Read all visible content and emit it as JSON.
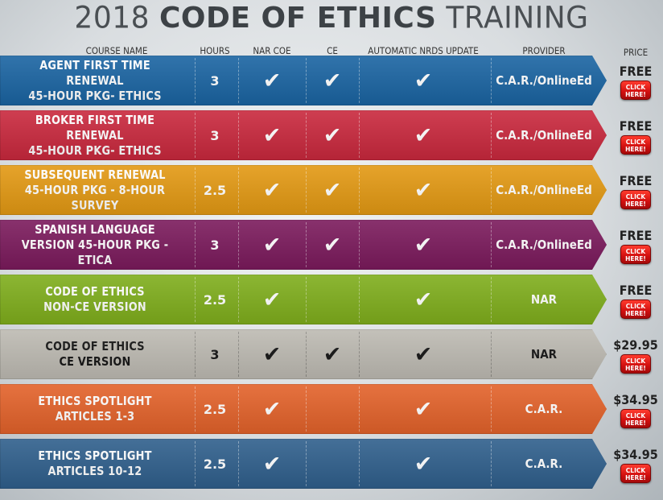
{
  "title": {
    "light1": "2018",
    "bold": "CODE OF ETHICS",
    "light2": "TRAINING"
  },
  "headers": {
    "course_name": "COURSE NAME",
    "hours": "HOURS",
    "nar_coe": "NAR COE",
    "ce": "CE",
    "nrds": "AUTOMATIC NRDS UPDATE",
    "provider": "PROVIDER",
    "price": "PRICE"
  },
  "check_symbol": "✔",
  "button_line1": "CLICK",
  "button_line2": "HERE!",
  "rows": [
    {
      "name1": "AGENT FIRST TIME RENEWAL",
      "name2": "45-HOUR PKG- ETHICS",
      "hours": "3",
      "nar_coe": true,
      "ce": true,
      "nrds": true,
      "provider": "C.A.R./OnlineEd",
      "price": "FREE",
      "color": "#1a64a2",
      "dark_text": false
    },
    {
      "name1": "BROKER FIRST TIME RENEWAL",
      "name2": "45-HOUR PKG- ETHICS",
      "hours": "3",
      "nar_coe": true,
      "ce": true,
      "nrds": true,
      "provider": "C.A.R./OnlineEd",
      "price": "FREE",
      "color": "#c9283d",
      "dark_text": false
    },
    {
      "name1": "SUBSEQUENT RENEWAL",
      "name2": "45-HOUR PKG - 8-HOUR SURVEY",
      "hours": "2.5",
      "nar_coe": true,
      "ce": true,
      "nrds": true,
      "provider": "C.A.R./OnlineEd",
      "price": "FREE",
      "color": "#e39913",
      "dark_text": false
    },
    {
      "name1": "SPANISH LANGUAGE",
      "name2": "VERSION 45-HOUR PKG - ETICA",
      "hours": "3",
      "nar_coe": true,
      "ce": true,
      "nrds": true,
      "provider": "C.A.R./OnlineEd",
      "price": "FREE",
      "color": "#7b1a5c",
      "dark_text": false
    },
    {
      "name1": "CODE OF ETHICS",
      "name2": "NON-CE VERSION",
      "hours": "2.5",
      "nar_coe": true,
      "ce": false,
      "nrds": true,
      "provider": "NAR",
      "price": "FREE",
      "color": "#7fae1c",
      "dark_text": false
    },
    {
      "name1": "CODE OF ETHICS",
      "name2": "CE VERSION",
      "hours": "3",
      "nar_coe": true,
      "ce": true,
      "nrds": true,
      "provider": "NAR",
      "price": "$29.95",
      "color": "#bdbab2",
      "dark_text": true
    },
    {
      "name1": "ETHICS SPOTLIGHT",
      "name2": "ARTICLES 1-3",
      "hours": "2.5",
      "nar_coe": true,
      "ce": false,
      "nrds": true,
      "provider": "C.A.R.",
      "price": "$34.95",
      "color": "#e3622a",
      "dark_text": false
    },
    {
      "name1": "ETHICS SPOTLIGHT",
      "name2": "ARTICLES 10-12",
      "hours": "2.5",
      "nar_coe": true,
      "ce": false,
      "nrds": true,
      "provider": "C.A.R.",
      "price": "$34.95",
      "color": "#2f5f8c",
      "dark_text": false
    }
  ]
}
